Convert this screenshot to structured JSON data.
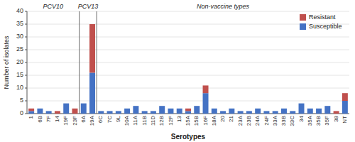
{
  "chart_data": {
    "type": "bar",
    "stacked": true,
    "categories": [
      "1",
      "6B",
      "7F",
      "14",
      "19F",
      "23F",
      "6A",
      "19A",
      "6C",
      "7C",
      "9L",
      "10A",
      "11A",
      "11B",
      "11D",
      "12B",
      "12F",
      "13",
      "15A",
      "15B",
      "16F",
      "18A",
      "20",
      "21",
      "23A",
      "23B",
      "24A",
      "24F",
      "33A",
      "33B",
      "33C",
      "34",
      "35A",
      "35B",
      "35F",
      "38",
      "NT"
    ],
    "series": [
      {
        "name": "Susceptible",
        "color": "#4472C4",
        "values": [
          1,
          2,
          1,
          0,
          4,
          0,
          4,
          16,
          1,
          1,
          1,
          2,
          3,
          1,
          1,
          3,
          2,
          2,
          1,
          3,
          8,
          2,
          1,
          2,
          1,
          1,
          2,
          1,
          1,
          2,
          1,
          4,
          2,
          2,
          3,
          0,
          5
        ]
      },
      {
        "name": "Resistant",
        "color": "#C0504D",
        "values": [
          1,
          0,
          0,
          1,
          0,
          2,
          0,
          19,
          0,
          0,
          0,
          0,
          0,
          0,
          0,
          0,
          0,
          0,
          1,
          0,
          3,
          0,
          0,
          0,
          0,
          0,
          0,
          0,
          0,
          0,
          0,
          0,
          0,
          0,
          0,
          1,
          3
        ]
      }
    ],
    "xlabel": "Serotypes",
    "ylabel": "Number of isolates",
    "ylim": [
      0,
      40
    ],
    "yticks": [
      0,
      5,
      10,
      15,
      20,
      25,
      30,
      35,
      40
    ],
    "grid": true,
    "legend": "upper right",
    "annotations": [
      {
        "text": "PCV10",
        "from": "1",
        "to": "23F"
      },
      {
        "text": "PCV13",
        "from": "6A",
        "to": "19A"
      },
      {
        "text": "Non-vaccine types",
        "from": "6C",
        "to": "NT"
      }
    ]
  }
}
